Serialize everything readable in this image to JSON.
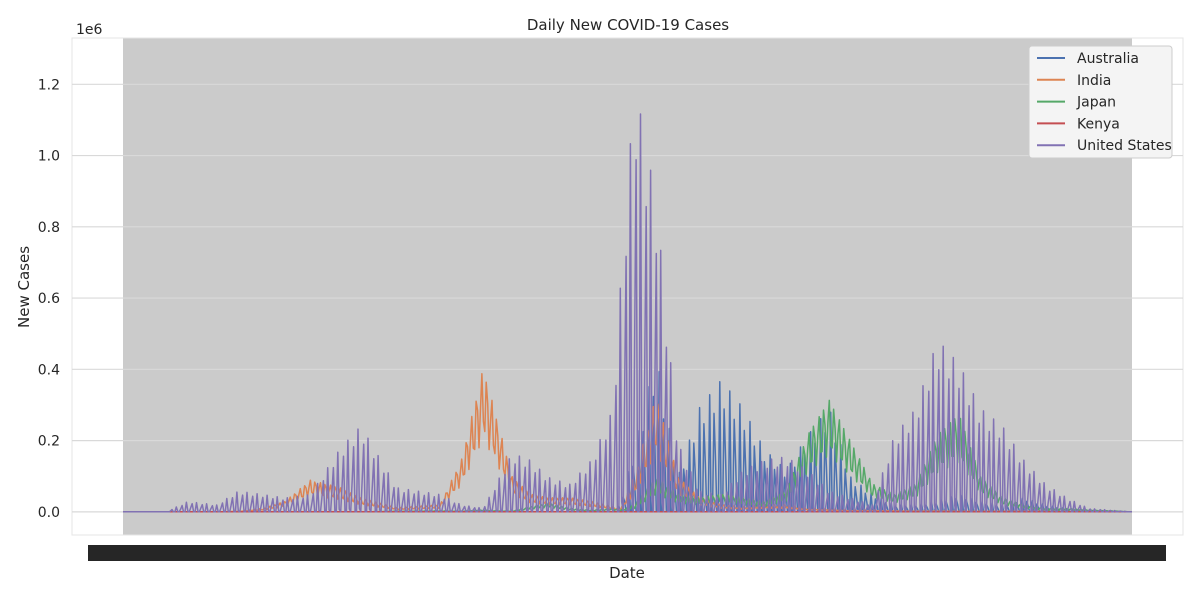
{
  "chart_data": {
    "type": "line",
    "title": "Daily New COVID-19 Cases",
    "xlabel": "Date",
    "ylabel": "New Cases",
    "y_offset_label": "1e6",
    "y_unit_scale": 1000000,
    "ylim": [
      -0.065,
      1.33
    ],
    "xlim": [
      -20,
      1420
    ],
    "y_ticks": [
      0.0,
      0.2,
      0.4,
      0.6,
      0.8,
      1.0,
      1.2
    ],
    "y_tick_labels": [
      "0.0",
      "0.2",
      "0.4",
      "0.6",
      "0.8",
      "1.0",
      "1.2"
    ],
    "x_tick_labels_note": "Overlapping unreadable date labels along the x-axis",
    "grid": true,
    "legend_position": "top-right",
    "x": [
      0,
      60,
      90,
      130,
      160,
      195,
      225,
      260,
      300,
      330,
      380,
      440,
      470,
      500,
      540,
      565,
      590,
      620,
      650,
      680,
      690,
      710,
      740,
      770,
      800,
      830,
      860,
      890,
      920,
      950,
      980,
      1010,
      1040,
      1070,
      1100,
      1130,
      1160,
      1190,
      1220,
      1250,
      1280,
      1310,
      1340,
      1370,
      1400
    ],
    "series": [
      {
        "name": "Australia",
        "color": "#4c72b0",
        "values": [
          0,
          0,
          0,
          0,
          0,
          0,
          0,
          0,
          0,
          0,
          0,
          0,
          0,
          0,
          0,
          0,
          0,
          0,
          0,
          0,
          0.02,
          0.18,
          0.45,
          0.1,
          0.3,
          0.38,
          0.3,
          0.18,
          0.12,
          0.22,
          0.3,
          0.1,
          0.05,
          0.02,
          0.02,
          0.03,
          0.05,
          0.03,
          0.02,
          0.04,
          0.02,
          0.01,
          0.0,
          0.0,
          0.0
        ]
      },
      {
        "name": "India",
        "color": "#dd8452",
        "values": [
          0,
          0,
          0,
          0,
          0.002,
          0.01,
          0.03,
          0.09,
          0.07,
          0.04,
          0.012,
          0.02,
          0.15,
          0.41,
          0.1,
          0.05,
          0.04,
          0.04,
          0.03,
          0.015,
          0.008,
          0.1,
          0.33,
          0.1,
          0.04,
          0.02,
          0.015,
          0.02,
          0.02,
          0.01,
          0.008,
          0.005,
          0.005,
          0.004,
          0.003,
          0.003,
          0.002,
          0.002,
          0.002,
          0.002,
          0.002,
          0.001,
          0.001,
          0.001,
          0.0
        ]
      },
      {
        "name": "Japan",
        "color": "#55a868",
        "values": [
          0,
          0,
          0,
          0,
          0,
          0,
          0,
          0,
          0,
          0,
          0.002,
          0.003,
          0.002,
          0.005,
          0.002,
          0.015,
          0.025,
          0.01,
          0.005,
          0.01,
          0.005,
          0.02,
          0.1,
          0.05,
          0.04,
          0.05,
          0.04,
          0.03,
          0.06,
          0.22,
          0.32,
          0.2,
          0.08,
          0.05,
          0.08,
          0.22,
          0.28,
          0.1,
          0.04,
          0.02,
          0.01,
          0.01,
          0.005,
          0.003,
          0.0
        ]
      },
      {
        "name": "Kenya",
        "color": "#c44e52",
        "values": [
          0,
          0,
          0,
          0,
          0,
          0,
          0,
          0,
          0,
          0,
          0,
          0,
          0,
          0,
          0,
          0,
          0,
          0,
          0,
          0,
          0,
          0,
          0,
          0,
          0,
          0,
          0,
          0,
          0,
          0,
          0,
          0,
          0,
          0,
          0,
          0,
          0,
          0,
          0,
          0,
          0,
          0,
          0,
          0,
          0
        ]
      },
      {
        "name": "United States",
        "color": "#8172b3",
        "values": [
          0,
          0,
          0.03,
          0.02,
          0.06,
          0.05,
          0.04,
          0.05,
          0.18,
          0.25,
          0.07,
          0.05,
          0.02,
          0.01,
          0.17,
          0.15,
          0.1,
          0.08,
          0.15,
          0.3,
          0.65,
          1.25,
          0.9,
          0.2,
          0.06,
          0.05,
          0.12,
          0.15,
          0.16,
          0.12,
          0.06,
          0.04,
          0.02,
          0.22,
          0.3,
          0.5,
          0.43,
          0.3,
          0.25,
          0.15,
          0.08,
          0.04,
          0.01,
          0.005,
          0.0
        ]
      }
    ]
  }
}
